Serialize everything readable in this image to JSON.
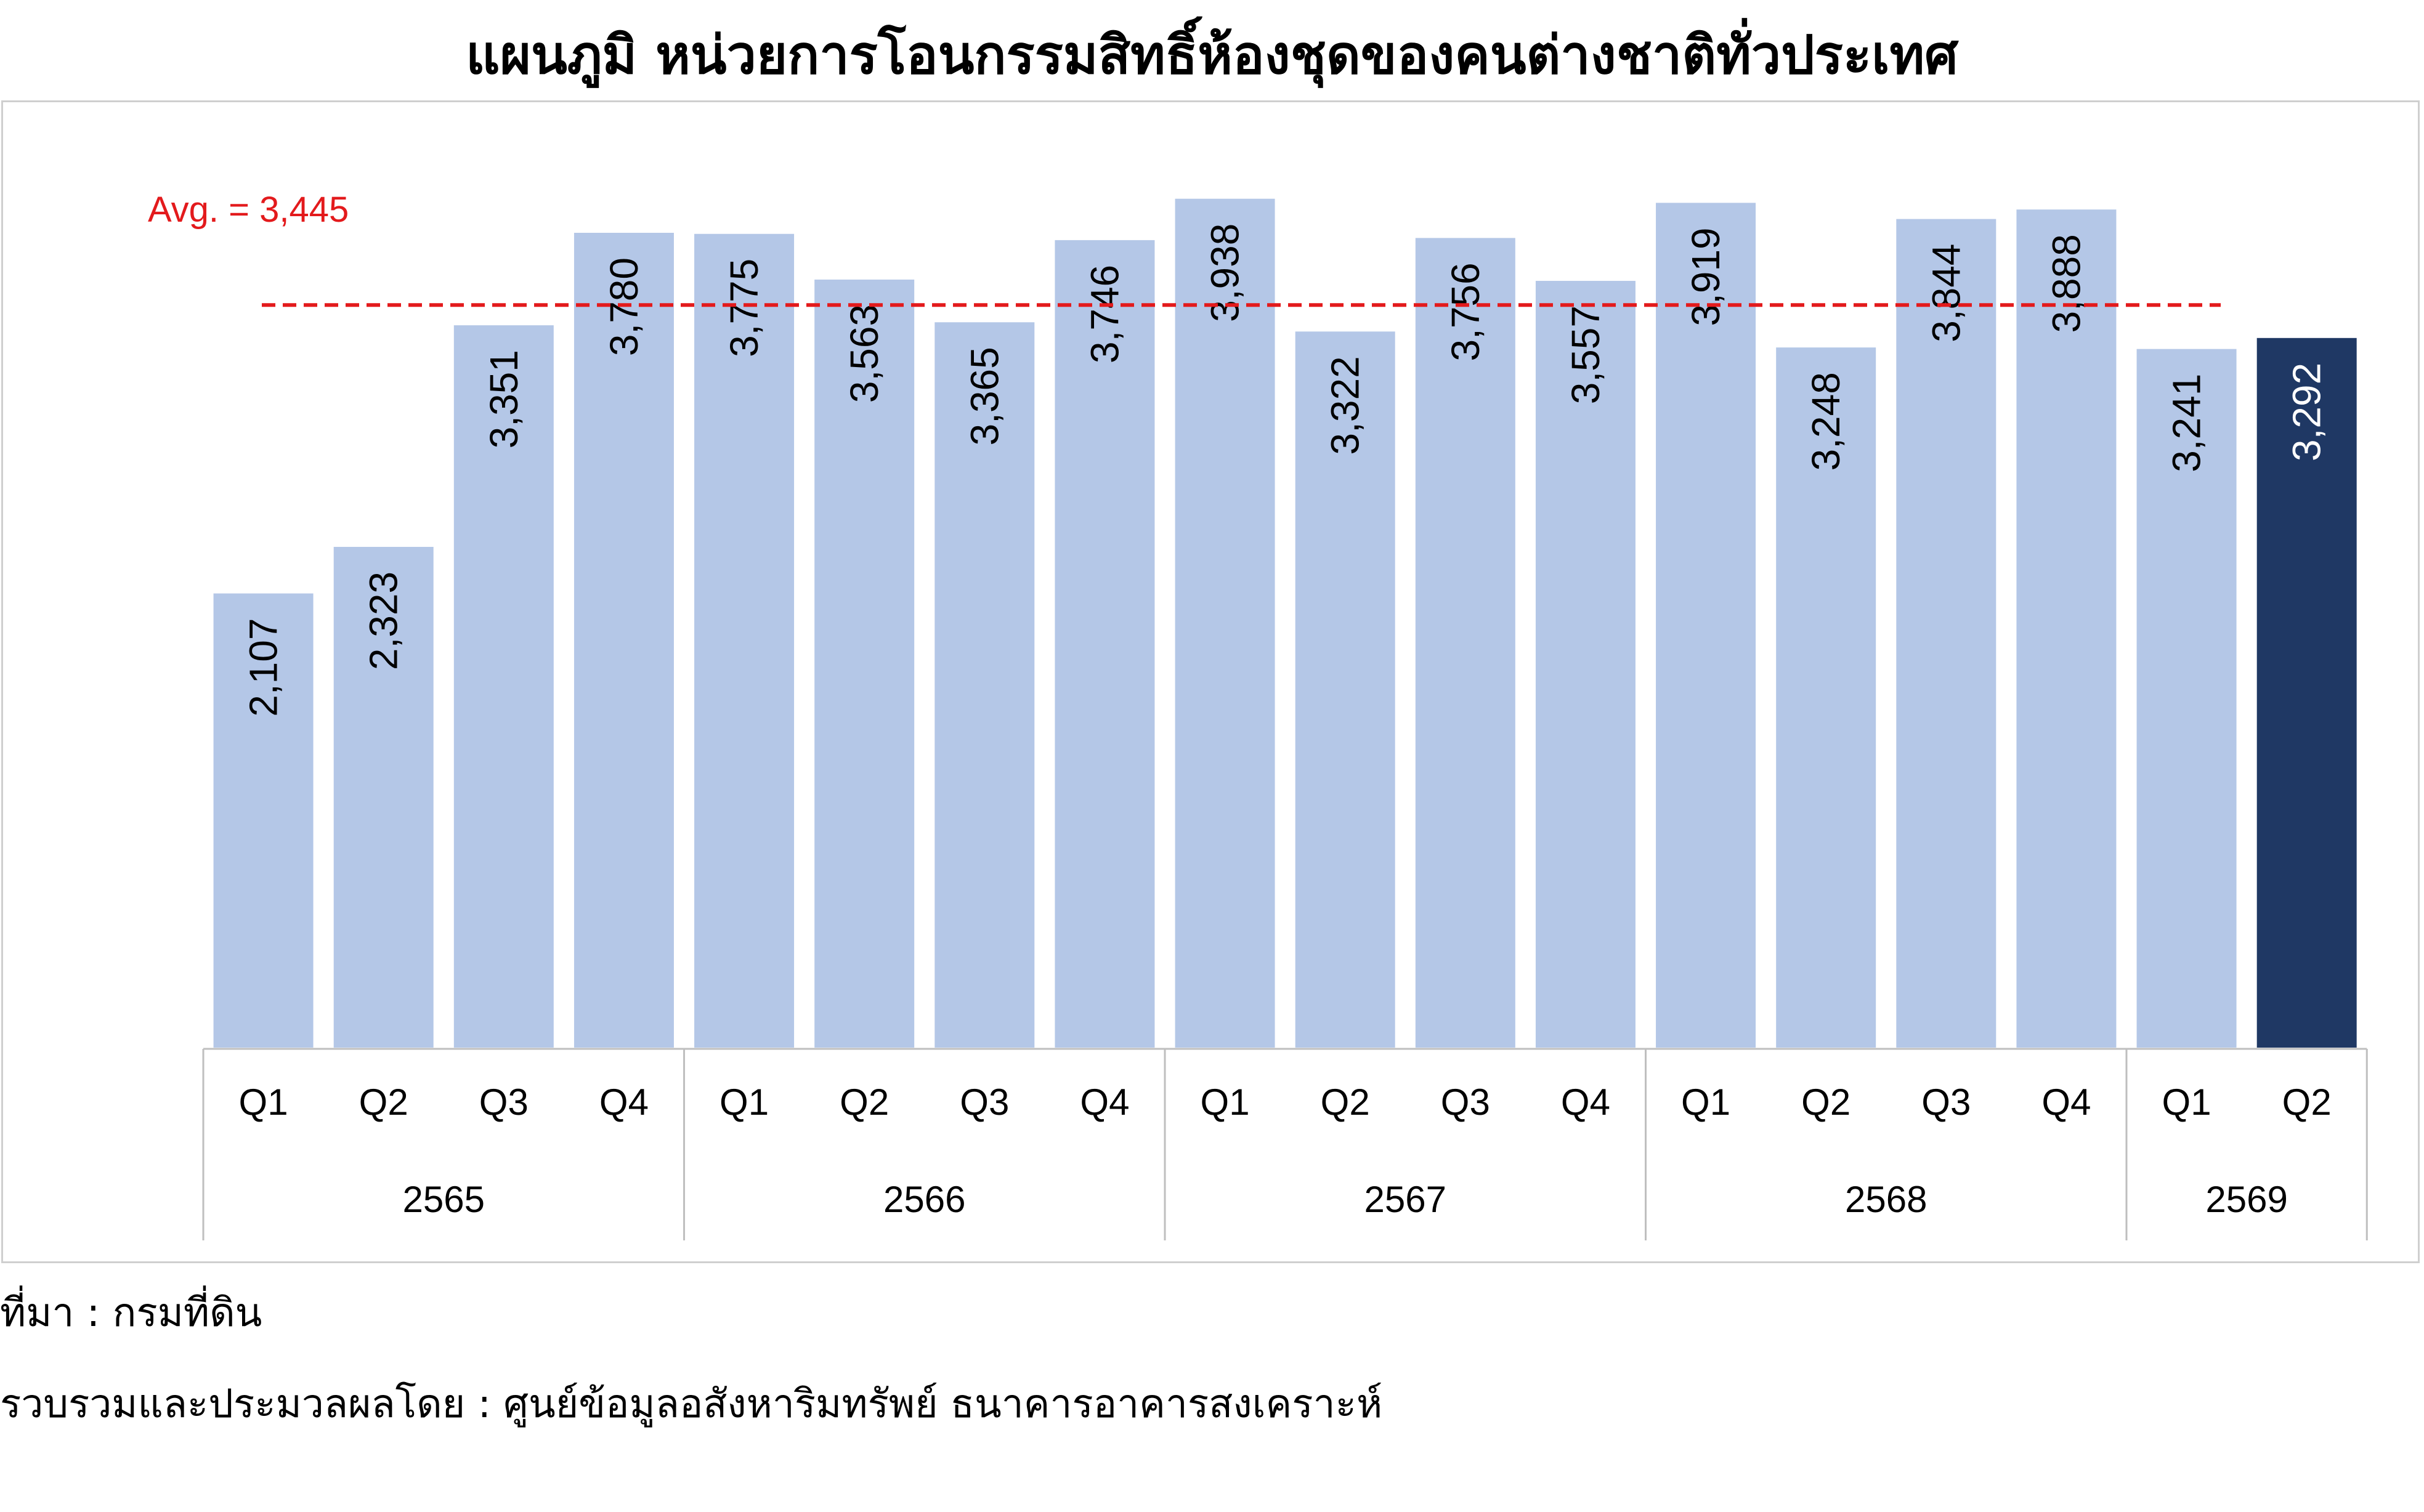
{
  "title": "แผนภูมิ หน่วยการโอนกรรมสิทธิ์ห้องชุดของคนต่างชาติทั่วประเทศ",
  "footnotes": {
    "source": "ที่มา : กรมที่ดิน",
    "compiled_by": "รวบรวมและประมวลผลโดย : ศูนย์ข้อมูลอสังหาริมทรัพย์ ธนาคารอาคารสงเคราะห์"
  },
  "colors": {
    "bar": "#b4c7e7",
    "highlight_bar": "#1f3864",
    "average_line": "#e31a1c",
    "axis": "#bfbfbf"
  },
  "chart_data": {
    "type": "bar",
    "title": "แผนภูมิ หน่วยการโอนกรรมสิทธิ์ห้องชุดของคนต่างชาติทั่วประเทศ",
    "xlabel": "",
    "ylabel": "",
    "ylim": [
      0,
      4100
    ],
    "grid": false,
    "legend": "none",
    "categories": [
      "Q1",
      "Q2",
      "Q3",
      "Q4",
      "Q1",
      "Q2",
      "Q3",
      "Q4",
      "Q1",
      "Q2",
      "Q3",
      "Q4",
      "Q1",
      "Q2",
      "Q3",
      "Q4",
      "Q1",
      "Q2"
    ],
    "groups": [
      {
        "label": "2565",
        "count": 4
      },
      {
        "label": "2566",
        "count": 4
      },
      {
        "label": "2567",
        "count": 4
      },
      {
        "label": "2568",
        "count": 4
      },
      {
        "label": "2569",
        "count": 2
      }
    ],
    "values": [
      2107,
      2323,
      3351,
      3780,
      3775,
      3563,
      3365,
      3746,
      3938,
      3322,
      3756,
      3557,
      3919,
      3248,
      3844,
      3888,
      3241,
      3292
    ],
    "value_labels": [
      "2,107",
      "2,323",
      "3,351",
      "3,780",
      "3,775",
      "3,563",
      "3,365",
      "3,746",
      "3,938",
      "3,322",
      "3,756",
      "3,557",
      "3,919",
      "3,248",
      "3,844",
      "3,888",
      "3,241",
      "3,292"
    ],
    "highlight_index": 17,
    "average": {
      "value": 3445,
      "label": "Avg. = 3,445"
    }
  }
}
